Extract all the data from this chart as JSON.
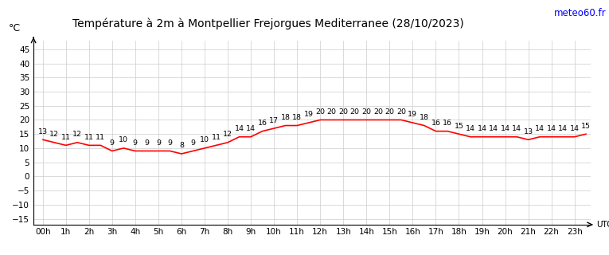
{
  "title": "Température à 2m à Montpellier Frejorgues Mediterranee (28/10/2023)",
  "ylabel": "°C",
  "xlabel_right": "UTC",
  "watermark": "meteo60.fr",
  "hours": [
    0,
    1,
    2,
    3,
    4,
    5,
    6,
    7,
    8,
    9,
    10,
    11,
    12,
    13,
    14,
    15,
    16,
    17,
    18,
    19,
    20,
    21,
    22,
    23
  ],
  "hour_labels": [
    "00h",
    "1h",
    "2h",
    "3h",
    "4h",
    "5h",
    "6h",
    "7h",
    "8h",
    "9h",
    "10h",
    "11h",
    "12h",
    "13h",
    "14h",
    "15h",
    "16h",
    "17h",
    "18h",
    "19h",
    "20h",
    "21h",
    "22h",
    "23h"
  ],
  "temps_per_hour": [
    13,
    12,
    11,
    12,
    11,
    11,
    9,
    10,
    9,
    9,
    9,
    9,
    8,
    9,
    10,
    11,
    12,
    14,
    14,
    16,
    17,
    18,
    18,
    19,
    20,
    20,
    20,
    20,
    20,
    20,
    20,
    20,
    19,
    18,
    16,
    16,
    15,
    14,
    14,
    14,
    14,
    14,
    13,
    14,
    14,
    14,
    14,
    15
  ],
  "yticks": [
    -15,
    -10,
    -5,
    0,
    5,
    10,
    15,
    20,
    25,
    30,
    35,
    40,
    45
  ],
  "ylim": [
    -17,
    48
  ],
  "xlim": [
    -0.4,
    23.7
  ],
  "line_color": "#ff0000",
  "grid_color": "#cccccc",
  "bg_color": "#ffffff",
  "title_fontsize": 10,
  "tick_fontsize": 7.5,
  "annot_fontsize": 6.8,
  "label_fontsize": 9
}
